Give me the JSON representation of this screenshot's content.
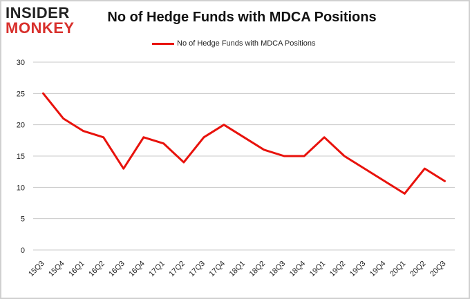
{
  "logo": {
    "line1": "INSIDER",
    "line2": "MONKEY"
  },
  "chart_data": {
    "type": "line",
    "title": "No of Hedge Funds with MDCA Positions",
    "legend": "No of Hedge Funds with MDCA Positions",
    "legend_position": "top-center",
    "xlabel": "",
    "ylabel": "",
    "ylim": [
      0,
      30
    ],
    "yticks": [
      0,
      5,
      10,
      15,
      20,
      25,
      30
    ],
    "grid": true,
    "categories": [
      "15Q3",
      "15Q4",
      "16Q1",
      "16Q2",
      "16Q3",
      "16Q4",
      "17Q1",
      "17Q2",
      "17Q3",
      "17Q4",
      "18Q1",
      "18Q2",
      "18Q3",
      "18Q4",
      "19Q1",
      "19Q2",
      "19Q3",
      "19Q4",
      "20Q1",
      "20Q2",
      "20Q3"
    ],
    "series": [
      {
        "name": "No of Hedge Funds with MDCA Positions",
        "color": "#e8120c",
        "values": [
          25,
          21,
          19,
          18,
          13,
          18,
          17,
          14,
          18,
          20,
          18,
          16,
          15,
          15,
          18,
          15,
          13,
          11,
          9,
          13,
          11
        ]
      }
    ]
  }
}
